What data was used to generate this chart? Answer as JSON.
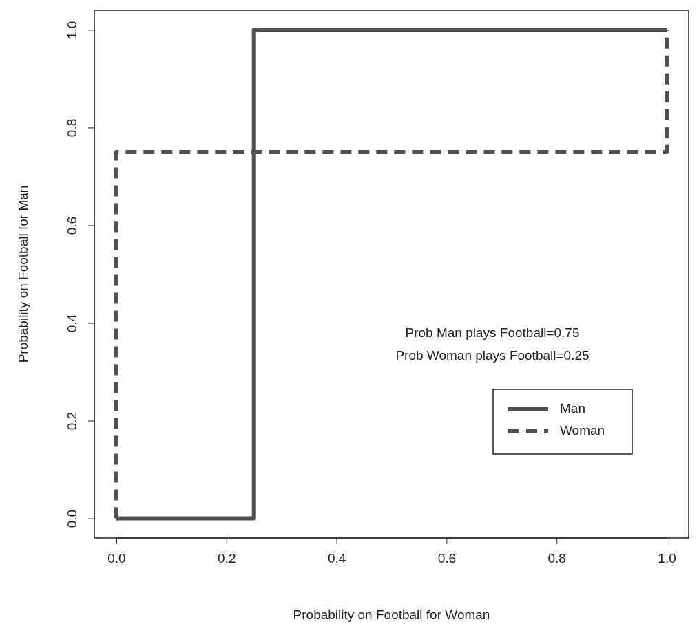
{
  "chart_data": {
    "type": "line",
    "xlabel": "Probability on Football for Woman",
    "ylabel": "Probability on Football for Man",
    "xlim": [
      -0.04,
      1.04
    ],
    "ylim": [
      -0.04,
      1.04
    ],
    "xticks": [
      {
        "value": 0,
        "label": "0.0"
      },
      0.2,
      0.4,
      0.6,
      0.8,
      {
        "value": 1,
        "label": "1.0"
      }
    ],
    "yticks": [
      {
        "value": 0,
        "label": "0.0"
      },
      0.2,
      0.4,
      0.6,
      0.8,
      {
        "value": 1,
        "label": "1.0"
      }
    ],
    "series": [
      {
        "name": "Man",
        "color": "#505050",
        "line_style": "solid",
        "x": [
          0,
          0.25,
          0.25,
          1
        ],
        "values": [
          0,
          0,
          1,
          1
        ]
      },
      {
        "name": "Woman",
        "color": "#505050",
        "line_style": "dashed",
        "x": [
          0,
          0,
          1,
          1
        ],
        "values": [
          0,
          0.75,
          0.75,
          1
        ]
      }
    ],
    "annotations": [
      "Prob Man plays Football=0.75",
      "Prob Woman plays Football=0.25"
    ],
    "legend": "bottom right",
    "grid": false,
    "marker": "none"
  }
}
